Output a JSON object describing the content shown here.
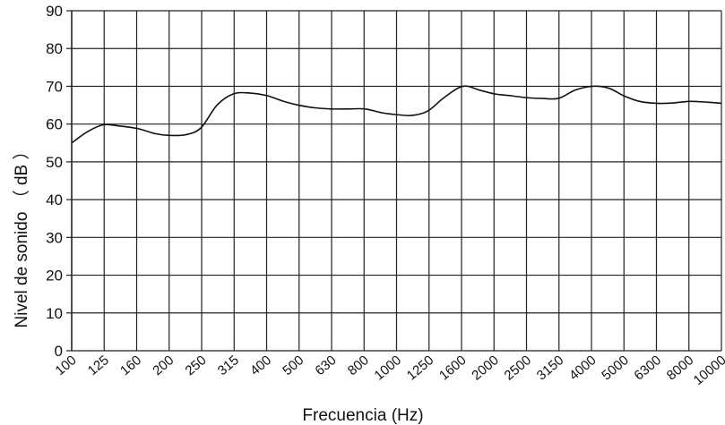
{
  "chart_data": {
    "type": "line",
    "xlabel": "Frecuencia (Hz)",
    "ylabel": "Nivel de sonido （ dB ）",
    "ylim": [
      0,
      90
    ],
    "yticks": [
      "0",
      "10",
      "20",
      "30",
      "40",
      "50",
      "60",
      "70",
      "80",
      "90"
    ],
    "categories": [
      "100",
      "125",
      "160",
      "200",
      "250",
      "315",
      "400",
      "500",
      "630",
      "800",
      "1000",
      "1250",
      "1600",
      "2000",
      "2500",
      "3150",
      "4000",
      "5000",
      "6300",
      "8000",
      "10000"
    ],
    "grid": true,
    "legend": "none",
    "line_color": "#111111",
    "series": [
      {
        "x": [
          100,
          112,
          125,
          140,
          160,
          180,
          200,
          225,
          250,
          280,
          315,
          355,
          400,
          450,
          500,
          560,
          630,
          710,
          800,
          900,
          1000,
          1120,
          1250,
          1400,
          1600,
          1800,
          2000,
          2250,
          2500,
          2800,
          3150,
          3550,
          4000,
          4500,
          5000,
          5600,
          6300,
          7100,
          8000,
          9000,
          10000
        ],
        "values": [
          55,
          58,
          59.8,
          59.5,
          58.8,
          57.5,
          57,
          57.2,
          59,
          65,
          68,
          68.2,
          67.5,
          66,
          65,
          64.3,
          64,
          64,
          64,
          63,
          62.5,
          62.3,
          63.5,
          67,
          70,
          69,
          68,
          67.5,
          67,
          66.8,
          66.8,
          69,
          70,
          69.5,
          67.5,
          66,
          65.5,
          65.6,
          66,
          65.8,
          65.5
        ]
      }
    ]
  }
}
